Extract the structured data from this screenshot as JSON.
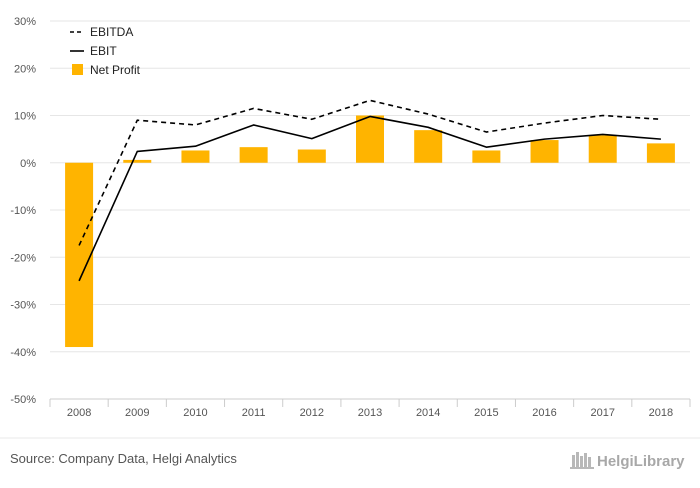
{
  "chart_data": {
    "type": "bar",
    "categories": [
      "2008",
      "2009",
      "2010",
      "2011",
      "2012",
      "2013",
      "2014",
      "2015",
      "2016",
      "2017",
      "2018"
    ],
    "series": [
      {
        "name": "EBITDA",
        "kind": "line",
        "style": "dashed",
        "color": "#000000",
        "values": [
          -17.5,
          9.0,
          8.0,
          11.5,
          9.2,
          13.2,
          10.3,
          6.5,
          8.4,
          10.0,
          9.2
        ]
      },
      {
        "name": "EBIT",
        "kind": "line",
        "style": "solid",
        "color": "#000000",
        "values": [
          -25.0,
          2.4,
          3.5,
          8.0,
          5.1,
          9.8,
          7.5,
          3.3,
          5.0,
          6.0,
          5.0
        ]
      },
      {
        "name": "Net Profit",
        "kind": "bar",
        "color": "#FFB400",
        "values": [
          -39.0,
          0.6,
          2.6,
          3.3,
          2.8,
          10.0,
          6.9,
          2.6,
          4.8,
          5.8,
          4.1
        ]
      }
    ],
    "y_ticks": [
      "30%",
      "20%",
      "10%",
      "0%",
      "-10%",
      "-20%",
      "-30%",
      "-40%",
      "-50%"
    ],
    "ylim": [
      -50,
      30
    ],
    "grid": true,
    "legend_position": "top-left"
  },
  "footer": {
    "source": "Source: Company Data, Helgi Analytics",
    "brand": "HelgiLibrary"
  }
}
